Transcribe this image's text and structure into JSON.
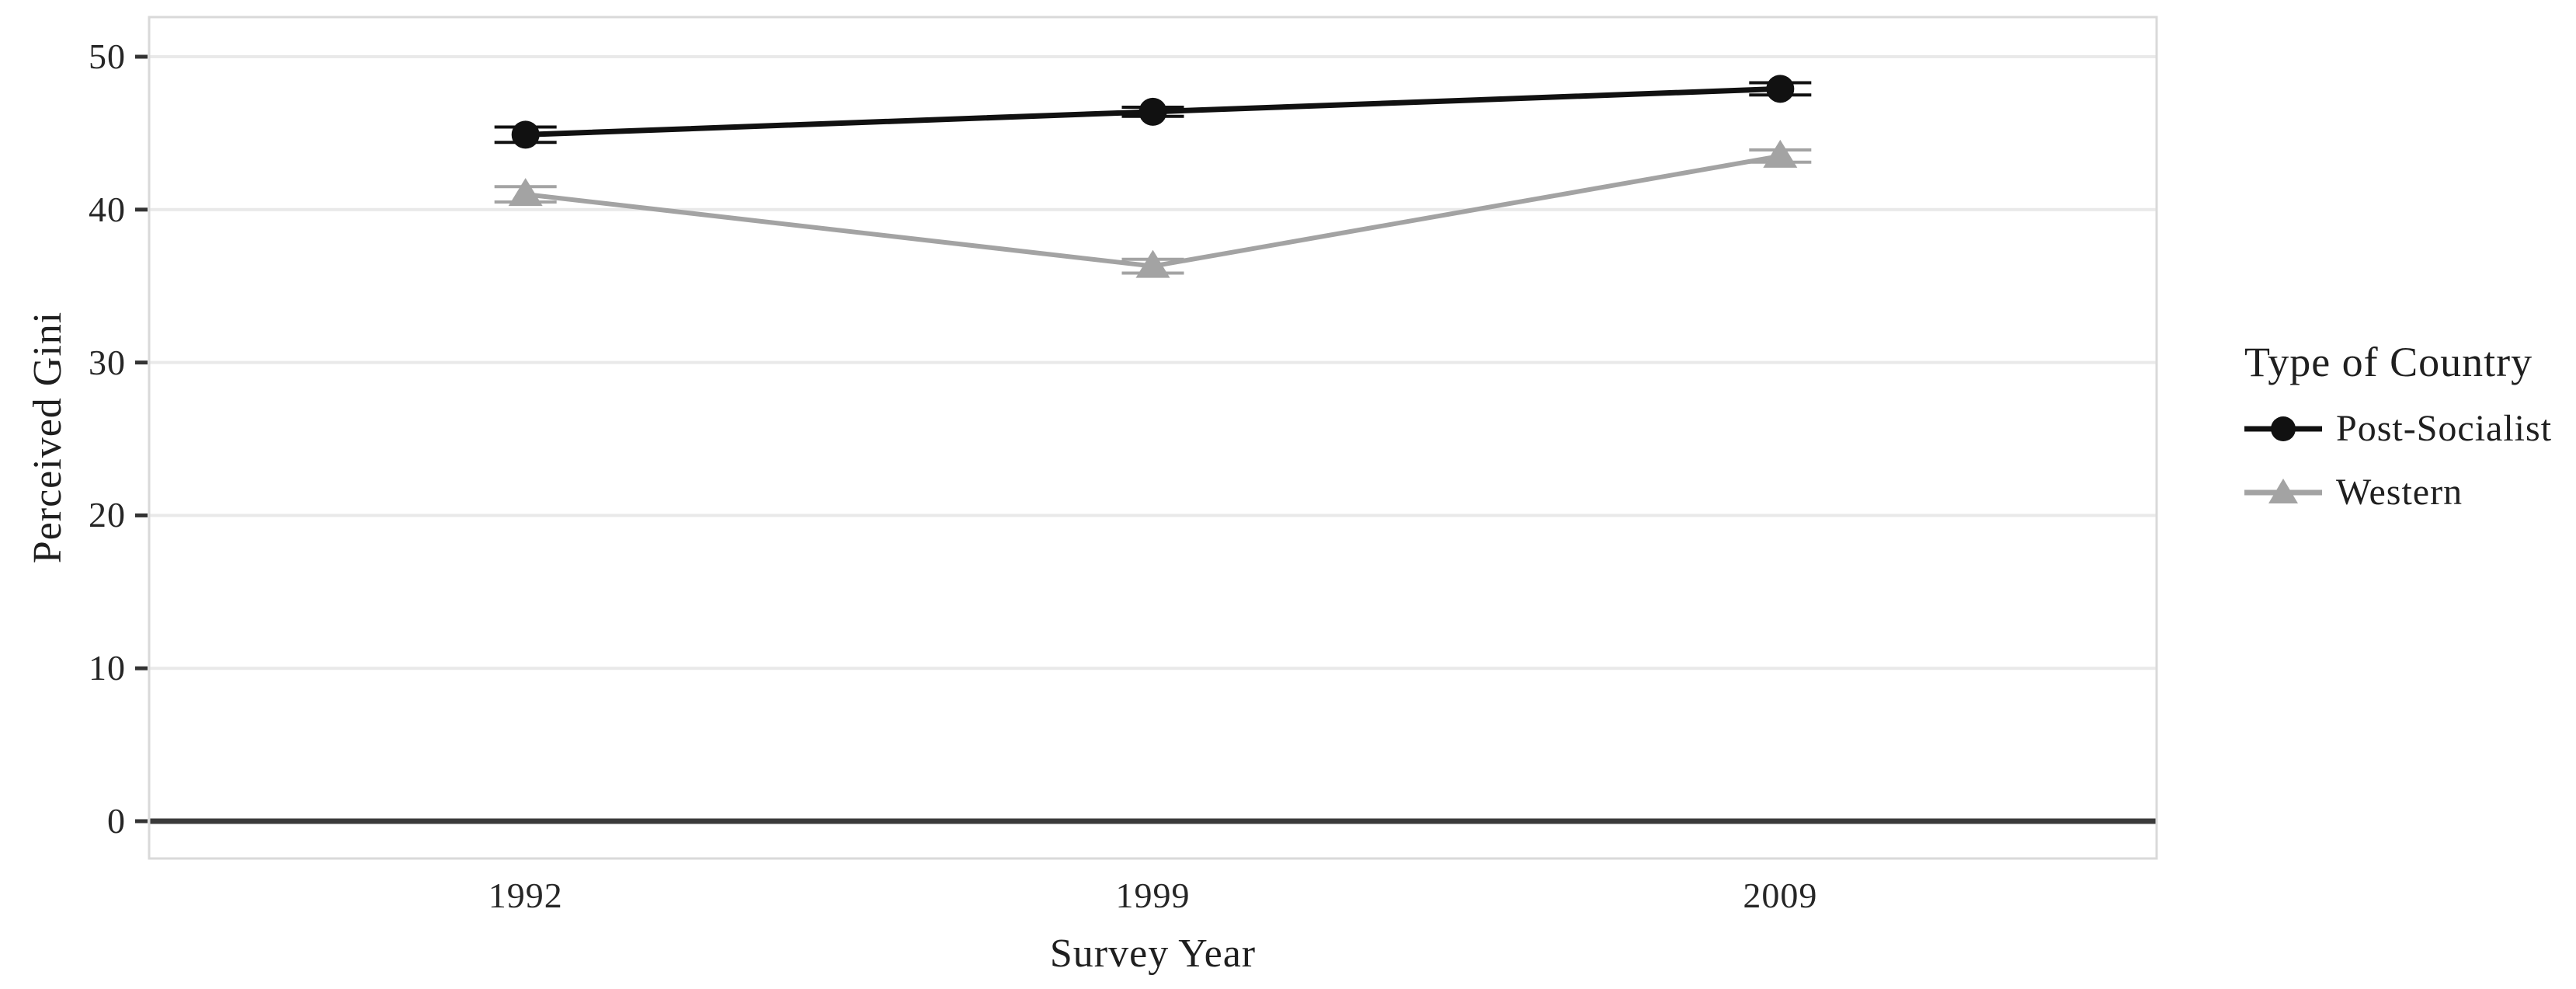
{
  "figure": {
    "background": "#ffffff"
  },
  "chart_data": {
    "type": "line",
    "title": "",
    "xlabel": "Survey Year",
    "ylabel": "Perceived Gini",
    "legend_title": "Type of Country",
    "legend_position": "right",
    "x_scale": "discrete",
    "categories": [
      "1992",
      "1999",
      "2009"
    ],
    "yticks": [
      0,
      10,
      20,
      30,
      40,
      50
    ],
    "ylim": [
      -2.5,
      52.5
    ],
    "grid": "horizontal-only",
    "zero_line": true,
    "error_bars": true,
    "series": [
      {
        "name": "Post-Socialist",
        "color": "#111111",
        "marker": "circle",
        "values": [
          44.9,
          46.4,
          47.9
        ],
        "error": [
          0.5,
          0.3,
          0.4
        ]
      },
      {
        "name": "Western",
        "color": "#a3a3a3",
        "marker": "triangle",
        "values": [
          41.0,
          36.3,
          43.5
        ],
        "error": [
          0.5,
          0.45,
          0.4
        ]
      }
    ],
    "colors": {
      "gridline": "#e9e9e9",
      "zero_line": "#3a3a3a",
      "panel_border": "#d9d9d9",
      "tick": "#333333",
      "text": "#1f1f1f",
      "background": "#ffffff"
    }
  }
}
